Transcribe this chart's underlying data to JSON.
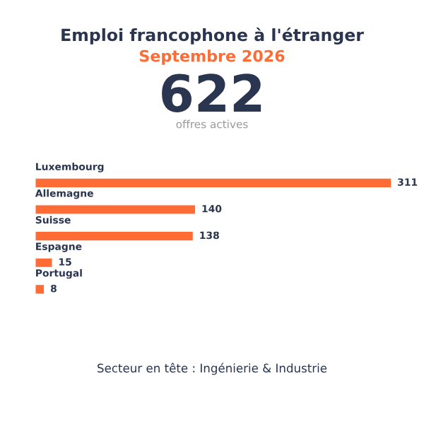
{
  "chart_data": {
    "type": "bar",
    "orientation": "horizontal",
    "title": "Emploi francophone à l'étranger",
    "subtitle": "Septembre 2026",
    "categories": [
      "Luxembourg",
      "Allemagne",
      "Suisse",
      "Espagne",
      "Portugal"
    ],
    "values": [
      311,
      140,
      138,
      15,
      8
    ],
    "color": "#ff6b35",
    "data_labels": true,
    "annotations": [
      "622",
      "offres actives",
      "Secteur en tête : Ingénierie & Industrie"
    ]
  }
}
